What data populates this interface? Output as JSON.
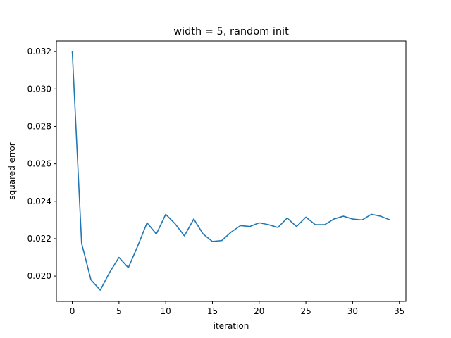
{
  "chart_data": {
    "type": "line",
    "title": "width = 5, random init",
    "xlabel": "iteration",
    "ylabel": "squared error",
    "xlim": [
      -1.7,
      35.7
    ],
    "ylim": [
      0.01865,
      0.03257
    ],
    "xticks": [
      0,
      5,
      10,
      15,
      20,
      25,
      30,
      35
    ],
    "yticks": [
      0.02,
      0.022,
      0.024,
      0.026,
      0.028,
      0.03,
      0.032
    ],
    "ytick_labels": [
      "0.020",
      "0.022",
      "0.024",
      "0.026",
      "0.028",
      "0.030",
      "0.032"
    ],
    "grid": false,
    "legend": "none",
    "series": [
      {
        "color": "#1f77b4",
        "x": [
          0,
          1,
          2,
          3,
          4,
          5,
          6,
          7,
          8,
          9,
          10,
          11,
          12,
          13,
          14,
          15,
          16,
          17,
          18,
          19,
          20,
          21,
          22,
          23,
          24,
          25,
          26,
          27,
          28,
          29,
          30,
          31,
          32,
          33,
          34
        ],
        "y": [
          0.032,
          0.02175,
          0.0198,
          0.01925,
          0.0202,
          0.021,
          0.02045,
          0.0216,
          0.02285,
          0.02225,
          0.0233,
          0.0228,
          0.02215,
          0.02305,
          0.02225,
          0.02185,
          0.0219,
          0.02235,
          0.0227,
          0.02265,
          0.02285,
          0.02275,
          0.0226,
          0.0231,
          0.02265,
          0.02315,
          0.02275,
          0.02275,
          0.02305,
          0.0232,
          0.02305,
          0.023,
          0.0233,
          0.0232,
          0.023
        ]
      }
    ]
  }
}
